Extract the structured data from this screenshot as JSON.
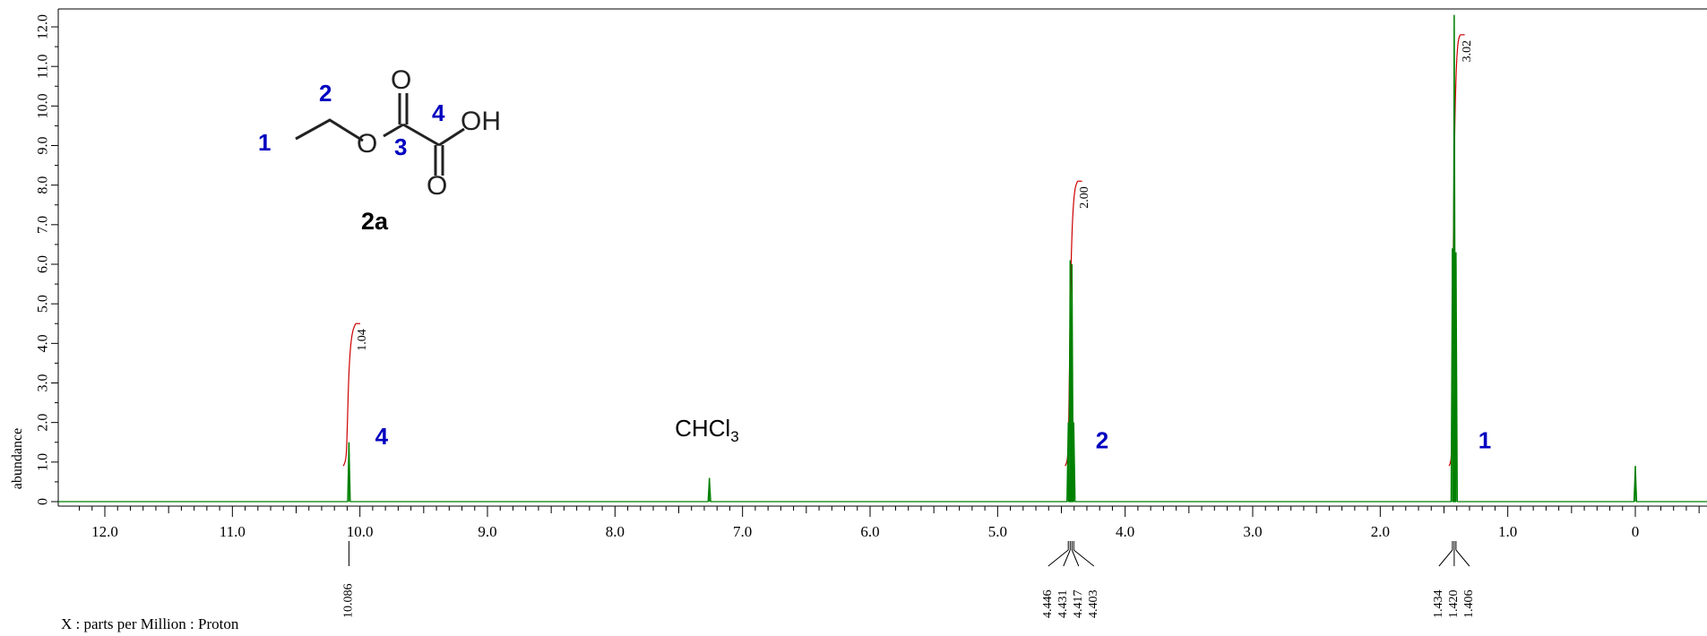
{
  "chart_data": {
    "type": "line",
    "xlabel": "X : parts per Million : Proton",
    "ylabel": "abundance",
    "xlim": [
      12.4,
      -0.55
    ],
    "ylim": [
      -0.3,
      12.3
    ],
    "x_ticks": [
      {
        "value": 12.0,
        "label": "12.0"
      },
      {
        "value": 11.0,
        "label": "11.0"
      },
      {
        "value": 10.0,
        "label": "10.0"
      },
      {
        "value": 9.0,
        "label": "9.0"
      },
      {
        "value": 8.0,
        "label": "8.0"
      },
      {
        "value": 7.0,
        "label": "7.0"
      },
      {
        "value": 6.0,
        "label": "6.0"
      },
      {
        "value": 5.0,
        "label": "5.0"
      },
      {
        "value": 4.0,
        "label": "4.0"
      },
      {
        "value": 3.0,
        "label": "3.0"
      },
      {
        "value": 2.0,
        "label": "2.0"
      },
      {
        "value": 1.0,
        "label": "1.0"
      },
      {
        "value": 0.0,
        "label": "0"
      }
    ],
    "y_ticks": [
      {
        "value": 0,
        "label": "0"
      },
      {
        "value": 1.0,
        "label": "1.0"
      },
      {
        "value": 2.0,
        "label": "2.0"
      },
      {
        "value": 3.0,
        "label": "3.0"
      },
      {
        "value": 4.0,
        "label": "4.0"
      },
      {
        "value": 5.0,
        "label": "5.0"
      },
      {
        "value": 6.0,
        "label": "6.0"
      },
      {
        "value": 7.0,
        "label": "7.0"
      },
      {
        "value": 8.0,
        "label": "8.0"
      },
      {
        "value": 9.0,
        "label": "9.0"
      },
      {
        "value": 10.0,
        "label": "10.0"
      },
      {
        "value": 11.0,
        "label": "11.0"
      },
      {
        "value": 12.0,
        "label": "12.0"
      }
    ],
    "peaks": [
      {
        "ppm": 10.086,
        "height": 1.5
      },
      {
        "ppm": 7.26,
        "height": 0.6
      },
      {
        "ppm": 4.446,
        "height": 2.0
      },
      {
        "ppm": 4.431,
        "height": 6.1
      },
      {
        "ppm": 4.417,
        "height": 6.0
      },
      {
        "ppm": 4.403,
        "height": 2.0
      },
      {
        "ppm": 1.434,
        "height": 6.4
      },
      {
        "ppm": 1.42,
        "height": 12.3
      },
      {
        "ppm": 1.406,
        "height": 6.3
      },
      {
        "ppm": 0.0,
        "height": 0.9
      }
    ],
    "peak_labels": [
      {
        "group": "4",
        "labels": [
          {
            "ppm": 10.086,
            "text": "10.086"
          }
        ]
      },
      {
        "group": "2",
        "labels": [
          {
            "ppm": 4.446,
            "text": "4.446"
          },
          {
            "ppm": 4.431,
            "text": "4.431"
          },
          {
            "ppm": 4.417,
            "text": "4.417"
          },
          {
            "ppm": 4.403,
            "text": "4.403"
          }
        ]
      },
      {
        "group": "1",
        "labels": [
          {
            "ppm": 1.434,
            "text": "1.434"
          },
          {
            "ppm": 1.42,
            "text": "1.420"
          },
          {
            "ppm": 1.406,
            "text": "1.406"
          }
        ]
      }
    ],
    "integrals": [
      {
        "ppm_start": 10.13,
        "ppm_end": 10.04,
        "value": "1.04",
        "top": 4.5
      },
      {
        "ppm_start": 4.47,
        "ppm_end": 4.38,
        "value": "2.00",
        "top": 8.1
      },
      {
        "ppm_start": 1.46,
        "ppm_end": 1.38,
        "value": "3.02",
        "top": 11.8
      }
    ],
    "annotations": [
      {
        "text": "4",
        "ppm": 9.83,
        "y": 1.45
      },
      {
        "text": "CHCl",
        "sub": "3",
        "ppm": 7.25,
        "y": 1.65
      },
      {
        "text": "2",
        "ppm": 4.18,
        "y": 1.35
      },
      {
        "text": "1",
        "ppm": 1.18,
        "y": 1.35
      }
    ],
    "colors": {
      "spectrum": "#008000",
      "integral": "#cc0000",
      "assignment": "#0000c0",
      "axis": "#000000"
    }
  },
  "structure": {
    "compound_label": "2a",
    "atoms": {
      "o_ester": "O",
      "o_top": "O",
      "oh": "OH",
      "o_bottom": "O"
    },
    "position_labels": [
      "1",
      "2",
      "3",
      "4"
    ]
  }
}
